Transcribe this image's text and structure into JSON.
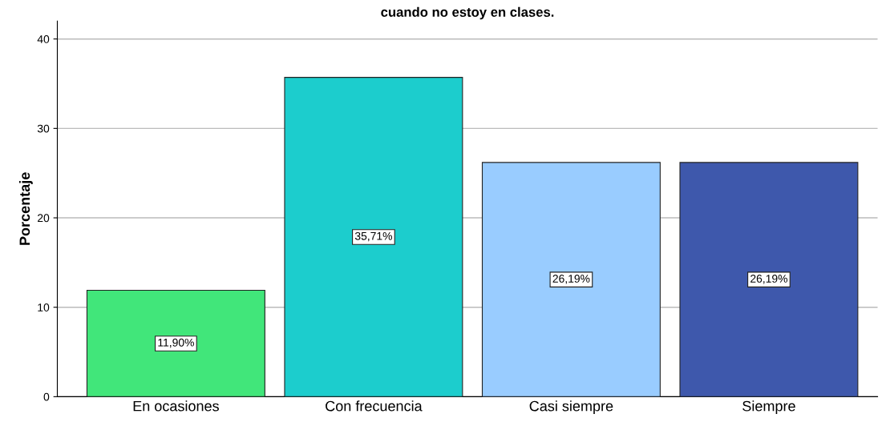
{
  "chart_data": {
    "type": "bar",
    "title": "cuando no estoy en clases.",
    "ylabel": "Porcentaje",
    "categories": [
      "En ocasiones",
      "Con frecuencia",
      "Casi siempre",
      "Siempre"
    ],
    "values": [
      11.9,
      35.71,
      26.19,
      26.19
    ],
    "colors": [
      "#41e67a",
      "#1ccdcd",
      "#99ccff",
      "#3e58ac"
    ],
    "value_labels": [
      "11,90%",
      "35,71%",
      "26,19%",
      "26,19%"
    ],
    "ylim": [
      0,
      42
    ],
    "yticks": [
      0,
      10,
      20,
      30,
      40
    ],
    "grid": "y"
  }
}
